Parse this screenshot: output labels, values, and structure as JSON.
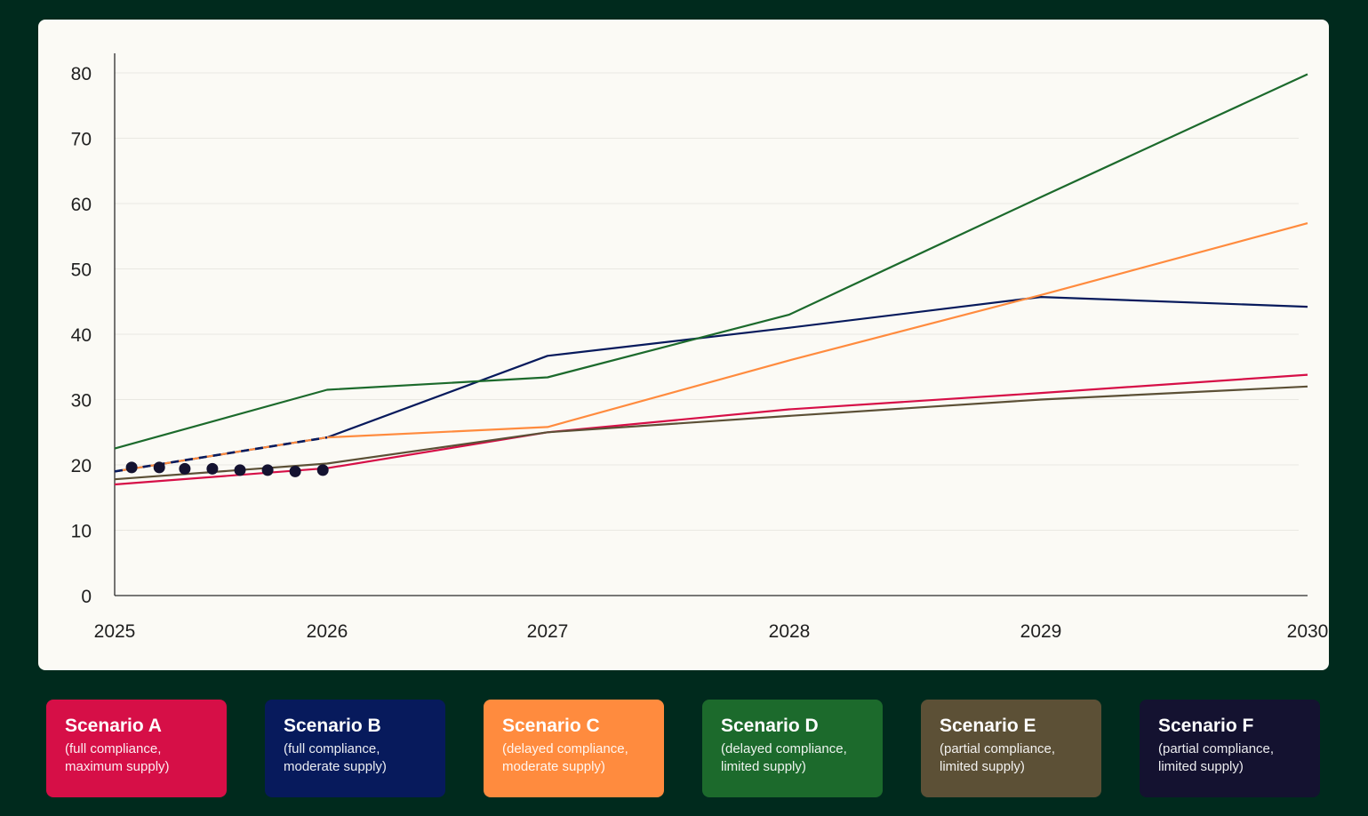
{
  "chart_data": {
    "type": "line",
    "title": "",
    "xlabel": "",
    "ylabel": "",
    "x_ticks": [
      "2025",
      "2026",
      "2027",
      "2028",
      "2029",
      "2030"
    ],
    "ylim": [
      0,
      80
    ],
    "y_ticks": [
      0,
      10,
      20,
      30,
      40,
      50,
      60,
      70,
      80
    ],
    "grid": true,
    "legend_placement": "bottom",
    "series": [
      {
        "key": "A",
        "color": "#d60f47",
        "points": [
          [
            2025,
            17
          ],
          [
            2026,
            19.5
          ],
          [
            2027,
            25
          ],
          [
            2028,
            28.5
          ],
          [
            2029,
            31
          ],
          [
            2030,
            33.8
          ]
        ]
      },
      {
        "key": "B",
        "color": "#071a5c",
        "points": [
          [
            2025,
            19
          ],
          [
            2026,
            24.2
          ],
          [
            2027,
            36.7
          ],
          [
            2028,
            41
          ],
          [
            2029,
            45.7
          ],
          [
            2030,
            44.2
          ]
        ]
      },
      {
        "key": "C",
        "color": "#ff8b3e",
        "points": [
          [
            2025,
            19
          ],
          [
            2026,
            24.2
          ],
          [
            2027,
            25.8
          ],
          [
            2028,
            36
          ],
          [
            2029,
            46
          ],
          [
            2030,
            57
          ]
        ]
      },
      {
        "key": "D",
        "color": "#1c6a2c",
        "points": [
          [
            2025,
            22.5
          ],
          [
            2026,
            31.5
          ],
          [
            2027,
            33.4
          ],
          [
            2028,
            43
          ],
          [
            2029,
            61
          ],
          [
            2030,
            79.8
          ]
        ]
      },
      {
        "key": "E",
        "color": "#5c5036",
        "points": [
          [
            2025,
            17.8
          ],
          [
            2026,
            20.2
          ],
          [
            2027,
            25
          ],
          [
            2028,
            27.5
          ],
          [
            2029,
            30
          ],
          [
            2030,
            32
          ]
        ]
      }
    ],
    "observed_points": {
      "color": "#141230",
      "points": [
        [
          2025.08,
          19.6
        ],
        [
          2025.21,
          19.6
        ],
        [
          2025.33,
          19.4
        ],
        [
          2025.46,
          19.4
        ],
        [
          2025.59,
          19.2
        ],
        [
          2025.72,
          19.2
        ],
        [
          2025.85,
          19.0
        ],
        [
          2025.98,
          19.2
        ]
      ]
    }
  },
  "legend": [
    {
      "title": "Scenario A",
      "desc1": "(full compliance,",
      "desc2": "maximum supply)",
      "color": "#d60f47"
    },
    {
      "title": "Scenario B",
      "desc1": "(full compliance,",
      "desc2": "moderate supply)",
      "color": "#071a5c"
    },
    {
      "title": "Scenario C",
      "desc1": "(delayed compliance,",
      "desc2": "moderate supply)",
      "color": "#ff8b3e"
    },
    {
      "title": "Scenario D",
      "desc1": "(delayed compliance,",
      "desc2": "limited supply)",
      "color": "#1c6a2c"
    },
    {
      "title": "Scenario E",
      "desc1": "(partial compliance,",
      "desc2": "limited supply)",
      "color": "#5c5036"
    },
    {
      "title": "Scenario F",
      "desc1": "(partial compliance,",
      "desc2": "limited supply)",
      "color": "#141230"
    }
  ]
}
